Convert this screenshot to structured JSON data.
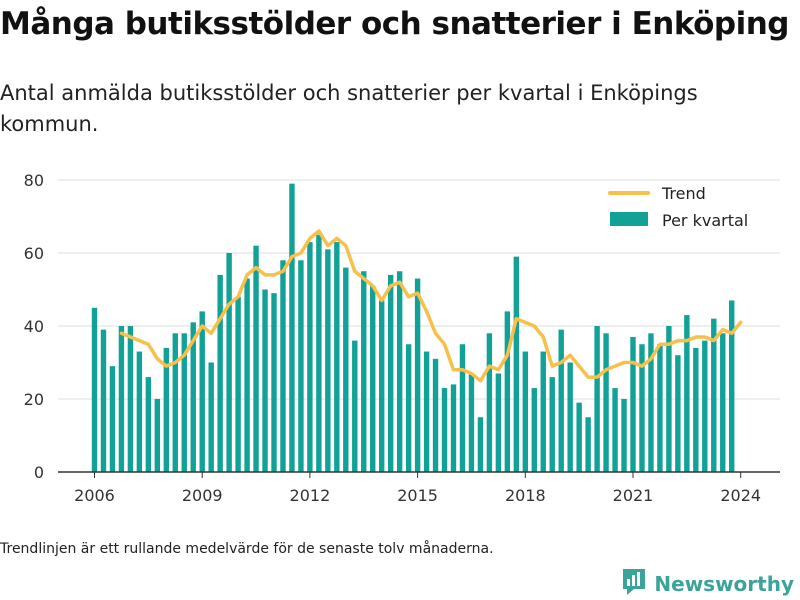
{
  "header": {
    "title": "Många butiksstölder och snatterier i Enköping",
    "subtitle": "Antal anmälda butiksstölder och snatterier per kvartal i Enköpings kommun."
  },
  "footer": {
    "note": "Trendlinjen är ett rullande medelvärde för de senaste tolv månaderna.",
    "brand": "Newsworthy",
    "brand_icon": "bar-chart-logo-icon"
  },
  "chart_data": {
    "type": "bar",
    "title": "",
    "xlabel": "",
    "ylabel": "",
    "ylim": [
      0,
      80
    ],
    "yticks": [
      0,
      20,
      40,
      60,
      80
    ],
    "xticks": [
      "2006",
      "2009",
      "2012",
      "2015",
      "2018",
      "2021",
      "2024"
    ],
    "grid": true,
    "legend_position": "top-right",
    "start_year": 2006,
    "series": [
      {
        "name": "Per kvartal",
        "type": "bar",
        "color": "#12a197",
        "values": [
          45,
          39,
          29,
          40,
          40,
          33,
          26,
          20,
          34,
          38,
          38,
          41,
          44,
          30,
          54,
          60,
          48,
          53,
          62,
          50,
          49,
          58,
          79,
          58,
          63,
          65,
          61,
          63,
          56,
          36,
          55,
          51,
          47,
          54,
          55,
          35,
          53,
          33,
          31,
          23,
          24,
          35,
          27,
          15,
          38,
          27,
          44,
          59,
          33,
          23,
          33,
          26,
          39,
          30,
          19,
          15,
          40,
          38,
          23,
          20,
          37,
          35,
          38,
          35,
          40,
          32,
          43,
          34,
          36,
          42,
          38,
          47
        ]
      },
      {
        "name": "Trend",
        "type": "line",
        "color": "#f7c04a",
        "start_index": 3,
        "values": [
          38,
          37,
          36,
          35,
          31,
          29,
          30,
          32,
          36,
          40,
          38,
          42,
          46,
          48,
          54,
          56,
          54,
          54,
          55,
          59,
          60,
          64,
          66,
          62,
          64,
          62,
          55,
          53,
          51,
          47,
          51,
          52,
          48,
          49,
          44,
          38,
          35,
          28,
          28,
          27,
          25,
          29,
          28,
          32,
          42,
          41,
          40,
          37,
          29,
          30,
          32,
          29,
          26,
          26,
          28,
          29,
          30,
          30,
          29,
          31,
          35,
          35,
          36,
          36,
          37,
          37,
          36,
          39,
          38,
          41
        ]
      }
    ]
  }
}
